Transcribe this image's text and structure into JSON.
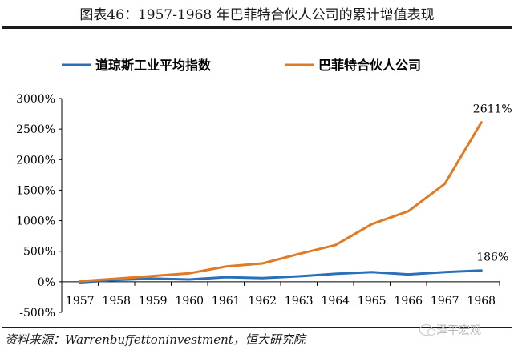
{
  "title": "图表46：1957-1968 年巴菲特合伙人公司的累计增值表现",
  "source": "资料来源：Warrenbuffettoninvestment，恒大研究院",
  "watermark": "泽平宏观",
  "colors": {
    "dow": "#2a6fba",
    "bpl": "#e07a24",
    "axis": "#000000"
  },
  "chart_data": {
    "type": "line",
    "categories": [
      "1957",
      "1958",
      "1959",
      "1960",
      "1961",
      "1962",
      "1963",
      "1964",
      "1965",
      "1966",
      "1967",
      "1968"
    ],
    "series": [
      {
        "name": "道琼斯工业平均指数",
        "color": "#2a6fba",
        "values": [
          -8,
          30,
          52,
          38,
          75,
          60,
          90,
          130,
          160,
          122,
          160,
          186
        ]
      },
      {
        "name": "巴菲特合伙人公司",
        "color": "#e07a24",
        "values": [
          10,
          50,
          95,
          140,
          250,
          300,
          455,
          600,
          945,
          1155,
          1605,
          2611
        ]
      }
    ],
    "y_ticks": [
      "-500%",
      "0%",
      "500%",
      "1000%",
      "1500%",
      "2000%",
      "2500%",
      "3000%"
    ],
    "ylim": [
      -500,
      3000
    ],
    "y_tick_step": 500,
    "annotations": [
      {
        "series": 1,
        "index": 11,
        "text": "2611%"
      },
      {
        "series": 0,
        "index": 11,
        "text": "186%"
      }
    ],
    "legend_position": "top",
    "grid": false
  }
}
